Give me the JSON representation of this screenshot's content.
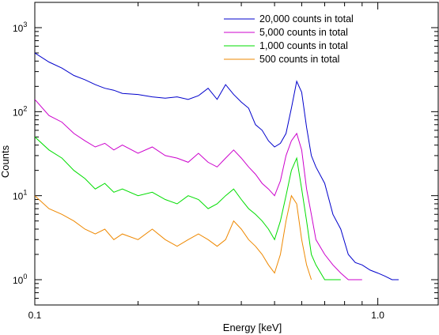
{
  "chart_data": {
    "type": "line",
    "xlabel": "Energy [keV]",
    "ylabel": "Counts",
    "x_scale": "log",
    "y_scale": "log",
    "xlim": [
      0.1,
      1.5
    ],
    "ylim": [
      0.5,
      2000
    ],
    "x_tick_labels": [
      {
        "value": 0.1,
        "label": "0.1"
      },
      {
        "value": 1.0,
        "label": "1.0"
      }
    ],
    "y_tick_labels": [
      {
        "value": 1,
        "base": "10",
        "exp": "0"
      },
      {
        "value": 10,
        "base": "10",
        "exp": "1"
      },
      {
        "value": 100,
        "base": "10",
        "exp": "2"
      },
      {
        "value": 1000,
        "base": "10",
        "exp": "3"
      }
    ],
    "grid": false,
    "legend_position": "top-right",
    "series": [
      {
        "name": "20,000 counts in total",
        "color": "#0000cc",
        "x": [
          0.1,
          0.11,
          0.12,
          0.13,
          0.14,
          0.15,
          0.16,
          0.17,
          0.18,
          0.2,
          0.22,
          0.24,
          0.26,
          0.28,
          0.3,
          0.32,
          0.34,
          0.36,
          0.38,
          0.4,
          0.42,
          0.44,
          0.46,
          0.48,
          0.5,
          0.52,
          0.54,
          0.56,
          0.58,
          0.6,
          0.62,
          0.64,
          0.66,
          0.7,
          0.74,
          0.78,
          0.82,
          0.86,
          0.9,
          0.95,
          1.0,
          1.05,
          1.1,
          1.15
        ],
        "y": [
          500,
          390,
          330,
          270,
          240,
          210,
          190,
          180,
          165,
          160,
          150,
          145,
          150,
          140,
          155,
          190,
          140,
          210,
          160,
          130,
          110,
          70,
          60,
          45,
          38,
          42,
          55,
          110,
          230,
          170,
          65,
          30,
          22,
          14,
          6,
          4,
          2,
          1.6,
          1.5,
          1.3,
          1.2,
          1.1,
          1.0,
          1.0
        ]
      },
      {
        "name": "5,000 counts in total",
        "color": "#cc00cc",
        "x": [
          0.1,
          0.11,
          0.12,
          0.13,
          0.14,
          0.15,
          0.16,
          0.17,
          0.18,
          0.2,
          0.22,
          0.24,
          0.26,
          0.28,
          0.3,
          0.32,
          0.34,
          0.36,
          0.38,
          0.4,
          0.42,
          0.44,
          0.46,
          0.48,
          0.5,
          0.52,
          0.54,
          0.56,
          0.58,
          0.6,
          0.62,
          0.64,
          0.66,
          0.7,
          0.74,
          0.78,
          0.82,
          0.86,
          0.9
        ],
        "y": [
          140,
          90,
          75,
          55,
          45,
          38,
          42,
          35,
          40,
          32,
          38,
          30,
          28,
          25,
          32,
          25,
          22,
          28,
          35,
          28,
          22,
          18,
          14,
          12,
          10,
          15,
          30,
          45,
          55,
          35,
          12,
          6,
          3,
          2,
          1.5,
          1.2,
          1.0,
          1.0,
          1.0
        ]
      },
      {
        "name": "1,000 counts in total",
        "color": "#00dd00",
        "x": [
          0.1,
          0.11,
          0.12,
          0.13,
          0.14,
          0.15,
          0.16,
          0.17,
          0.18,
          0.2,
          0.22,
          0.24,
          0.26,
          0.28,
          0.3,
          0.32,
          0.34,
          0.36,
          0.38,
          0.4,
          0.42,
          0.44,
          0.46,
          0.48,
          0.5,
          0.52,
          0.54,
          0.56,
          0.58,
          0.6,
          0.62,
          0.64,
          0.66,
          0.7,
          0.74,
          0.78
        ],
        "y": [
          50,
          35,
          28,
          20,
          16,
          12,
          14,
          11,
          12,
          10,
          11,
          9,
          8,
          10,
          9,
          7,
          8,
          10,
          12,
          9,
          7,
          6,
          5,
          4,
          3,
          5,
          10,
          20,
          28,
          12,
          5,
          2,
          1.5,
          1.0,
          1.0,
          1.0
        ]
      },
      {
        "name": "500 counts in total",
        "color": "#ee8800",
        "x": [
          0.1,
          0.11,
          0.12,
          0.13,
          0.14,
          0.15,
          0.16,
          0.17,
          0.18,
          0.2,
          0.22,
          0.24,
          0.26,
          0.28,
          0.3,
          0.32,
          0.34,
          0.36,
          0.38,
          0.4,
          0.42,
          0.44,
          0.46,
          0.48,
          0.5,
          0.52,
          0.54,
          0.56,
          0.58,
          0.6,
          0.62,
          0.64
        ],
        "y": [
          10,
          7,
          6,
          5,
          4,
          3.5,
          4,
          3,
          3.5,
          3,
          4,
          3,
          2.5,
          3,
          3.5,
          3,
          2.5,
          3,
          5,
          4,
          3,
          2.5,
          2,
          1.5,
          1.2,
          2,
          5,
          10,
          8,
          3,
          1.5,
          1.0
        ]
      }
    ]
  }
}
